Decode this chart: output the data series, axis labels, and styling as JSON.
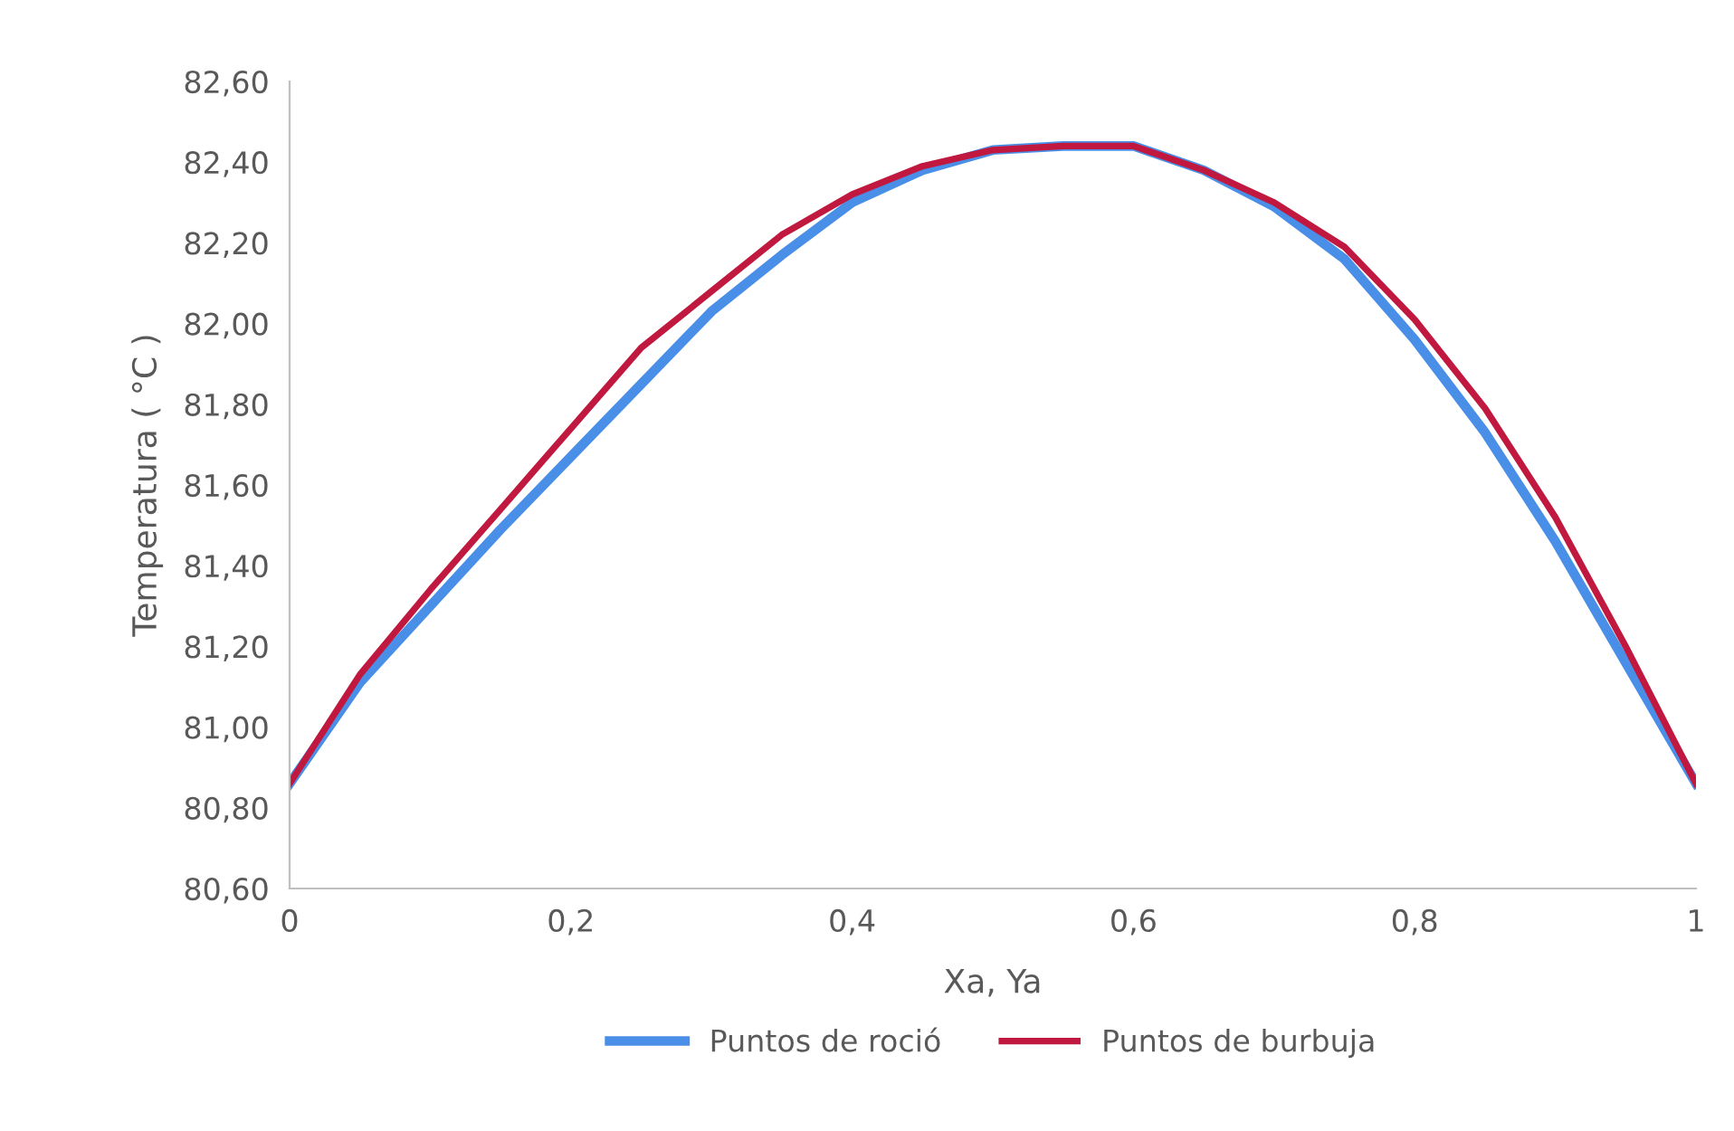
{
  "chart_data": {
    "type": "line",
    "xlabel": "Xa, Ya",
    "ylabel": "Temperatura ( °C )",
    "x": [
      0,
      0.05,
      0.1,
      0.15,
      0.2,
      0.25,
      0.3,
      0.35,
      0.4,
      0.45,
      0.5,
      0.55,
      0.6,
      0.65,
      0.7,
      0.75,
      0.8,
      0.85,
      0.9,
      0.95,
      1
    ],
    "series": [
      {
        "name": "Puntos de roció",
        "color": "#4a8fe7",
        "values": [
          80.86,
          81.11,
          81.3,
          81.49,
          81.67,
          81.85,
          82.03,
          82.17,
          82.3,
          82.38,
          82.43,
          82.44,
          82.44,
          82.38,
          82.29,
          82.16,
          81.96,
          81.73,
          81.46,
          81.16,
          80.86
        ]
      },
      {
        "name": "Puntos de burbuja",
        "color": "#c0183f",
        "values": [
          80.86,
          81.13,
          81.34,
          81.54,
          81.74,
          81.94,
          82.08,
          82.22,
          82.32,
          82.39,
          82.43,
          82.44,
          82.44,
          82.38,
          82.3,
          82.19,
          82.01,
          81.79,
          81.52,
          81.2,
          80.86
        ]
      }
    ],
    "xlim": [
      0,
      1
    ],
    "xticks": [
      {
        "value": 0,
        "label": "0"
      },
      {
        "value": 0.2,
        "label": "0,2"
      },
      {
        "value": 0.4,
        "label": "0,4"
      },
      {
        "value": 0.6,
        "label": "0,6"
      },
      {
        "value": 0.8,
        "label": "0,8"
      },
      {
        "value": 1,
        "label": "1"
      }
    ],
    "ylim": [
      80.6,
      82.6
    ],
    "yticks": [
      {
        "value": 80.6,
        "label": "80,60"
      },
      {
        "value": 80.8,
        "label": "80,80"
      },
      {
        "value": 81.0,
        "label": "81,00"
      },
      {
        "value": 81.2,
        "label": "81,20"
      },
      {
        "value": 81.4,
        "label": "81,40"
      },
      {
        "value": 81.6,
        "label": "81,60"
      },
      {
        "value": 81.8,
        "label": "81,80"
      },
      {
        "value": 82.0,
        "label": "82,00"
      },
      {
        "value": 82.2,
        "label": "82,20"
      },
      {
        "value": 82.4,
        "label": "82,40"
      },
      {
        "value": 82.6,
        "label": "82,60"
      }
    ],
    "grid": false,
    "legend": "bottom",
    "marker": "none",
    "line_style": "solid"
  }
}
